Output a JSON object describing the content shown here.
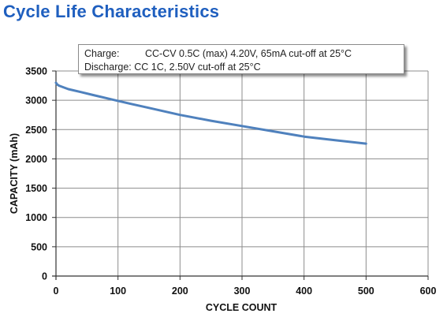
{
  "title": "Cycle Life Characteristics",
  "conditions": {
    "charge_label": "Charge:",
    "charge_text": "CC-CV 0.5C (max) 4.20V, 65mA cut-off at 25°C",
    "discharge_label": "Discharge:",
    "discharge_text": "CC 1C, 2.50V cut-off at 25°C"
  },
  "colors": {
    "title": "#1f5fbf",
    "line": "#4f81bd",
    "grid": "#8c8c8c"
  },
  "chart_data": {
    "type": "line",
    "xlabel": "CYCLE COUNT",
    "ylabel": "CAPACITY (mAh)",
    "xlim": [
      0,
      600
    ],
    "ylim": [
      0,
      3500
    ],
    "xticks": [
      0,
      100,
      200,
      300,
      400,
      500,
      600
    ],
    "yticks": [
      0,
      500,
      1000,
      1500,
      2000,
      2500,
      3000,
      3500
    ],
    "grid": true,
    "series": [
      {
        "x": [
          0,
          2,
          5,
          10,
          20,
          40,
          60,
          80,
          100,
          120,
          150,
          200,
          250,
          300,
          350,
          400,
          450,
          500
        ],
        "y": [
          3300,
          3270,
          3250,
          3230,
          3190,
          3140,
          3090,
          3040,
          2990,
          2940,
          2870,
          2750,
          2650,
          2560,
          2470,
          2380,
          2320,
          2260
        ]
      }
    ]
  }
}
